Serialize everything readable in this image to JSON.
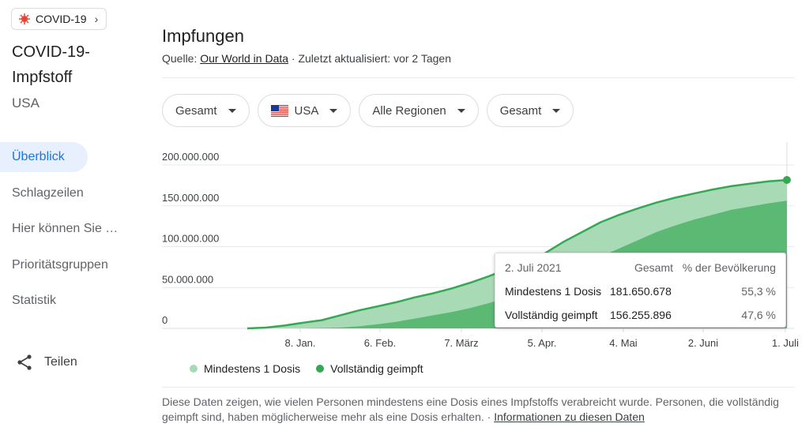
{
  "sidebar": {
    "chip_label": "COVID-19",
    "title": "COVID-19-Impfstoff",
    "subtitle": "USA",
    "items": [
      {
        "label": "Überblick"
      },
      {
        "label": "Schlagzeilen"
      },
      {
        "label": "Hier können Sie …"
      },
      {
        "label": "Prioritätsgruppen"
      },
      {
        "label": "Statistik"
      }
    ],
    "share_label": "Teilen"
  },
  "main": {
    "title": "Impfungen",
    "source_prefix": "Quelle: ",
    "source_link": "Our World in Data",
    "source_suffix": " · Zuletzt aktualisiert: vor 2 Tagen",
    "filters": [
      {
        "label": "Gesamt"
      },
      {
        "label": "USA"
      },
      {
        "label": "Alle Regionen"
      },
      {
        "label": "Gesamt"
      }
    ],
    "note_text": "Diese Daten zeigen, wie vielen Personen mindestens eine Dosis eines Impfstoffs verabreicht wurde. Personen, die vollständig geimpft sind, haben möglicherweise mehr als eine Dosis erhalten.  · ",
    "note_link": "Informationen zu diesen Daten"
  },
  "tooltip": {
    "date": "2. Juli 2021",
    "col_total": "Gesamt",
    "col_pct": "% der Bevölkerung",
    "rows": [
      {
        "label": "Mindestens 1 Dosis",
        "value": "181.650.678",
        "pct": "55,3 %"
      },
      {
        "label": "Vollständig geimpft",
        "value": "156.255.896",
        "pct": "47,6 %"
      }
    ]
  },
  "colors": {
    "light_green": "#a8dab5",
    "dark_green": "#5bb974",
    "line_green": "#34a853",
    "active_blue": "#1a73e8"
  },
  "chart_data": {
    "type": "area",
    "ylim": [
      0,
      200000000
    ],
    "yticks": [
      {
        "value": 0,
        "label": "0"
      },
      {
        "value": 50000000,
        "label": "50.000.000"
      },
      {
        "value": 100000000,
        "label": "100.000.000"
      },
      {
        "value": 150000000,
        "label": "150.000.000"
      },
      {
        "value": 200000000,
        "label": "200.000.000"
      }
    ],
    "xticks": [
      "8. Jan.",
      "6. Feb.",
      "7. März",
      "5. Apr.",
      "4. Mai",
      "2. Juni",
      "1. Juli"
    ],
    "x": [
      "13. Dez.",
      "20. Dez.",
      "27. Dez.",
      "3. Jan.",
      "10. Jan.",
      "17. Jan.",
      "24. Jan.",
      "31. Jan.",
      "7. Feb.",
      "14. Feb.",
      "21. Feb.",
      "28. Feb.",
      "7. März",
      "14. März",
      "21. März",
      "28. März",
      "4. Apr.",
      "11. Apr.",
      "18. Apr.",
      "25. Apr.",
      "2. Mai",
      "9. Mai",
      "16. Mai",
      "23. Mai",
      "30. Mai",
      "6. Juni",
      "13. Juni",
      "20. Juni",
      "27. Juni",
      "2. Juli"
    ],
    "series": [
      {
        "name": "Mindestens 1 Dosis",
        "values": [
          0,
          1000000,
          3500000,
          7000000,
          10000000,
          16000000,
          22000000,
          27000000,
          32000000,
          38000000,
          43000000,
          49000000,
          56000000,
          64000000,
          73000000,
          82000000,
          92000000,
          106000000,
          118000000,
          130000000,
          139000000,
          147000000,
          154000000,
          160000000,
          165000000,
          170000000,
          174000000,
          177000000,
          180000000,
          181650678
        ]
      },
      {
        "name": "Vollständig geimpft",
        "values": [
          0,
          0,
          0,
          0,
          500000,
          1000000,
          2500000,
          5000000,
          8000000,
          12000000,
          16000000,
          20000000,
          25000000,
          31000000,
          38000000,
          46000000,
          55000000,
          65000000,
          76000000,
          88000000,
          98000000,
          108000000,
          118000000,
          126000000,
          133000000,
          139000000,
          145000000,
          149000000,
          153000000,
          156255896
        ]
      }
    ]
  }
}
